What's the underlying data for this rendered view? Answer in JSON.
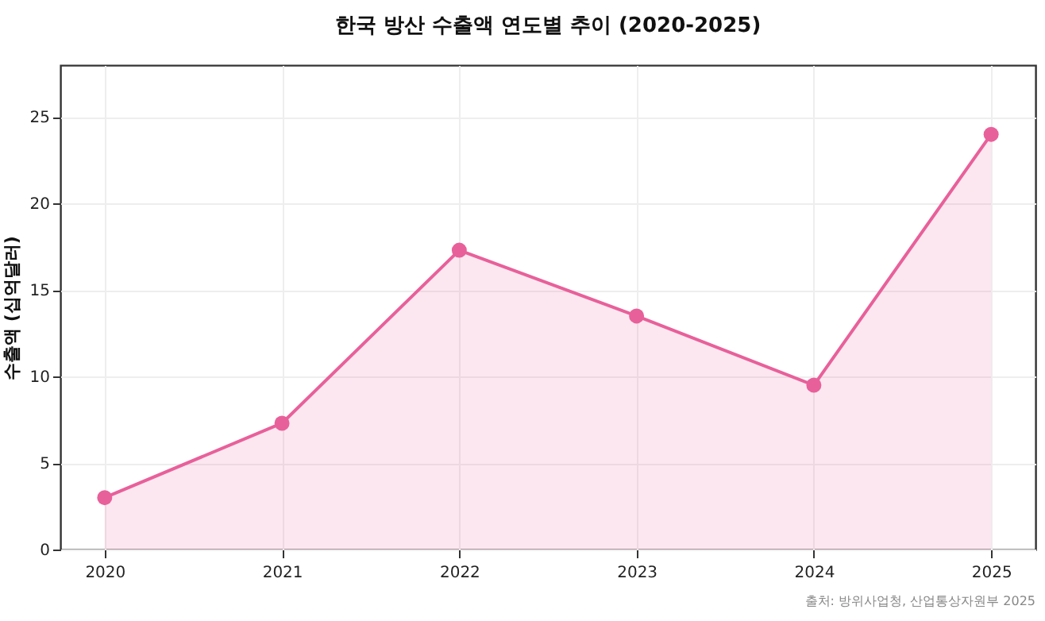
{
  "chart_data": {
    "type": "area",
    "title": "한국 방산 수출액 연도별 추이 (2020-2025)",
    "ylabel": "수출액 (십억달러)",
    "annotations": [
      "출처: 방위사업청, 산업통상자원부 2025"
    ],
    "x": [
      2020,
      2021,
      2022,
      2023,
      2024,
      2025
    ],
    "series": [
      {
        "color": "#e8609a",
        "values": [
          3.0,
          7.3,
          17.3,
          13.5,
          9.5,
          24.0
        ]
      }
    ],
    "xlim": [
      2019.75,
      2025.25
    ],
    "xticks": [
      2020,
      2021,
      2022,
      2023,
      2024,
      2025
    ],
    "ylim": [
      0,
      28
    ],
    "yticks": [
      0,
      5,
      10,
      15,
      20,
      25
    ],
    "grid": true,
    "marker": "circle",
    "line_style": "solid"
  }
}
